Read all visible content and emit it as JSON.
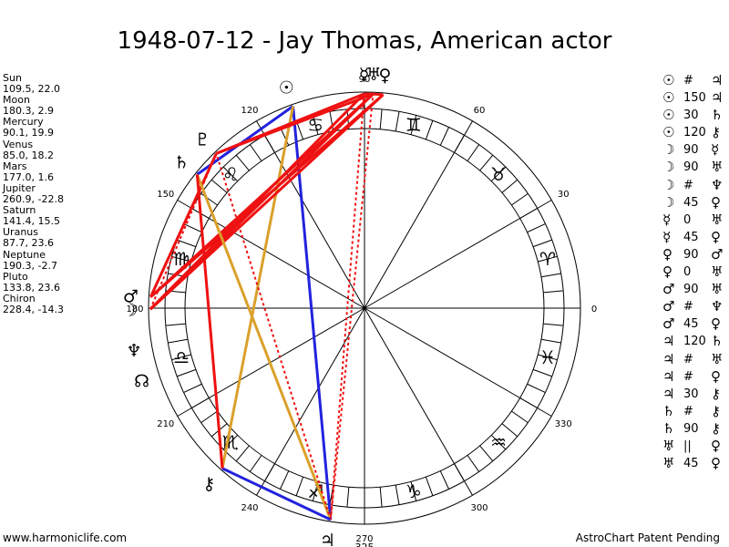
{
  "title": "1948-07-12 - Jay Thomas, American actor",
  "footer": {
    "left": "www.harmoniclife.com",
    "right": "AstroChart Patent Pending"
  },
  "planets": [
    {
      "name": "Sun",
      "coords": "109.5, 22.0"
    },
    {
      "name": "Moon",
      "coords": "180.3, 2.9"
    },
    {
      "name": "Mercury",
      "coords": "90.1, 19.9"
    },
    {
      "name": "Venus",
      "coords": "85.0, 18.2"
    },
    {
      "name": "Mars",
      "coords": "177.0, 1.6"
    },
    {
      "name": "Jupiter",
      "coords": "260.9, -22.8"
    },
    {
      "name": "Saturn",
      "coords": "141.4, 15.5"
    },
    {
      "name": "Uranus",
      "coords": "87.7, 23.6"
    },
    {
      "name": "Neptune",
      "coords": "190.3, -2.7"
    },
    {
      "name": "Pluto",
      "coords": "133.8, 23.6"
    },
    {
      "name": "Chiron",
      "coords": "228.4, -14.3"
    }
  ],
  "aspects": [
    {
      "p1": "☉",
      "sym": "#",
      "p2": "♃"
    },
    {
      "p1": "☉",
      "sym": "150",
      "p2": "♃"
    },
    {
      "p1": "☉",
      "sym": "30",
      "p2": "♄"
    },
    {
      "p1": "☉",
      "sym": "120",
      "p2": "⚷"
    },
    {
      "p1": "☽",
      "sym": "90",
      "p2": "☿"
    },
    {
      "p1": "☽",
      "sym": "90",
      "p2": "♅"
    },
    {
      "p1": "☽",
      "sym": "#",
      "p2": "♆"
    },
    {
      "p1": "☽",
      "sym": "45",
      "p2": "♀"
    },
    {
      "p1": "☿",
      "sym": "0",
      "p2": "♅"
    },
    {
      "p1": "☿",
      "sym": "45",
      "p2": "♀"
    },
    {
      "p1": "♀",
      "sym": "90",
      "p2": "♂"
    },
    {
      "p1": "♀",
      "sym": "0",
      "p2": "♅"
    },
    {
      "p1": "♂",
      "sym": "90",
      "p2": "♅"
    },
    {
      "p1": "♂",
      "sym": "#",
      "p2": "♆"
    },
    {
      "p1": "♂",
      "sym": "45",
      "p2": "♀"
    },
    {
      "p1": "♃",
      "sym": "120",
      "p2": "♄"
    },
    {
      "p1": "♃",
      "sym": "#",
      "p2": "♅"
    },
    {
      "p1": "♃",
      "sym": "#",
      "p2": "♀"
    },
    {
      "p1": "♃",
      "sym": "30",
      "p2": "⚷"
    },
    {
      "p1": "♄",
      "sym": "#",
      "p2": "⚷"
    },
    {
      "p1": "♄",
      "sym": "90",
      "p2": "⚷"
    },
    {
      "p1": "♅",
      "sym": "||",
      "p2": "♀"
    },
    {
      "p1": "♅",
      "sym": "45",
      "p2": "♀"
    }
  ],
  "wheel": {
    "degree_labels": [
      "0",
      "30",
      "60",
      "90",
      "120",
      "150",
      "180",
      "210",
      "240",
      "270",
      "300",
      "330"
    ],
    "extra_label": "325",
    "zodiac": [
      {
        "name": "aries-icon",
        "glyph": "♈"
      },
      {
        "name": "taurus-icon",
        "glyph": "♉"
      },
      {
        "name": "gemini-icon",
        "glyph": "♊"
      },
      {
        "name": "cancer-icon",
        "glyph": "♋"
      },
      {
        "name": "leo-icon",
        "glyph": "♌"
      },
      {
        "name": "virgo-icon",
        "glyph": "♍"
      },
      {
        "name": "libra-icon",
        "glyph": "♎"
      },
      {
        "name": "scorpio-icon",
        "glyph": "♏"
      },
      {
        "name": "sagittarius-icon",
        "glyph": "♐"
      },
      {
        "name": "capricorn-icon",
        "glyph": "♑"
      },
      {
        "name": "aquarius-icon",
        "glyph": "♒"
      },
      {
        "name": "pisces-icon",
        "glyph": "♓"
      }
    ],
    "bodies": [
      {
        "name": "sun",
        "glyph": "☉",
        "lon": 109.5
      },
      {
        "name": "moon",
        "glyph": "☽",
        "lon": 180.3
      },
      {
        "name": "mercury",
        "glyph": "☿",
        "lon": 90.1
      },
      {
        "name": "venus",
        "glyph": "♀",
        "lon": 85.0
      },
      {
        "name": "mars",
        "glyph": "♂",
        "lon": 177.0
      },
      {
        "name": "jupiter",
        "glyph": "♃",
        "lon": 260.9
      },
      {
        "name": "saturn",
        "glyph": "♄",
        "lon": 141.4
      },
      {
        "name": "uranus",
        "glyph": "♅",
        "lon": 87.7
      },
      {
        "name": "neptune",
        "glyph": "♆",
        "lon": 190.3
      },
      {
        "name": "pluto",
        "glyph": "♇",
        "lon": 133.8
      },
      {
        "name": "chiron",
        "glyph": "⚷",
        "lon": 228.4
      },
      {
        "name": "node",
        "glyph": "☊",
        "lon": 198.0
      }
    ],
    "aspect_lines": [
      {
        "a": "sun",
        "b": "jupiter",
        "color": "#2222dd",
        "style": "solid"
      },
      {
        "a": "sun",
        "b": "saturn",
        "color": "#2222dd",
        "style": "solid"
      },
      {
        "a": "sun",
        "b": "chiron",
        "color": "#daa02a",
        "style": "solid"
      },
      {
        "a": "moon",
        "b": "mercury",
        "color": "#ee1111",
        "style": "solid"
      },
      {
        "a": "moon",
        "b": "uranus",
        "color": "#ee1111",
        "style": "solid"
      },
      {
        "a": "moon",
        "b": "venus",
        "color": "#ee1111",
        "style": "solid"
      },
      {
        "a": "moon",
        "b": "pluto",
        "color": "#ee1111",
        "style": "dotted"
      },
      {
        "a": "mercury",
        "b": "uranus",
        "color": "#ee1111",
        "style": "solid"
      },
      {
        "a": "mercury",
        "b": "pluto",
        "color": "#ee1111",
        "style": "solid"
      },
      {
        "a": "venus",
        "b": "mars",
        "color": "#ee1111",
        "style": "solid"
      },
      {
        "a": "venus",
        "b": "uranus",
        "color": "#ee1111",
        "style": "solid"
      },
      {
        "a": "mars",
        "b": "uranus",
        "color": "#ee1111",
        "style": "solid"
      },
      {
        "a": "mars",
        "b": "pluto",
        "color": "#ee1111",
        "style": "solid"
      },
      {
        "a": "jupiter",
        "b": "saturn",
        "color": "#daa02a",
        "style": "solid"
      },
      {
        "a": "jupiter",
        "b": "uranus",
        "color": "#ee1111",
        "style": "dotted"
      },
      {
        "a": "jupiter",
        "b": "pluto",
        "color": "#ee1111",
        "style": "dotted"
      },
      {
        "a": "jupiter",
        "b": "chiron",
        "color": "#2222dd",
        "style": "solid"
      },
      {
        "a": "saturn",
        "b": "chiron",
        "color": "#ee1111",
        "style": "solid"
      },
      {
        "a": "uranus",
        "b": "pluto",
        "color": "#ee1111",
        "style": "solid"
      },
      {
        "a": "mercury",
        "b": "jupiter",
        "color": "#ee1111",
        "style": "dotted"
      }
    ],
    "colors": {
      "circle": "#000000",
      "hard": "#ee1111",
      "soft": "#2222dd",
      "minor": "#daa02a"
    }
  }
}
